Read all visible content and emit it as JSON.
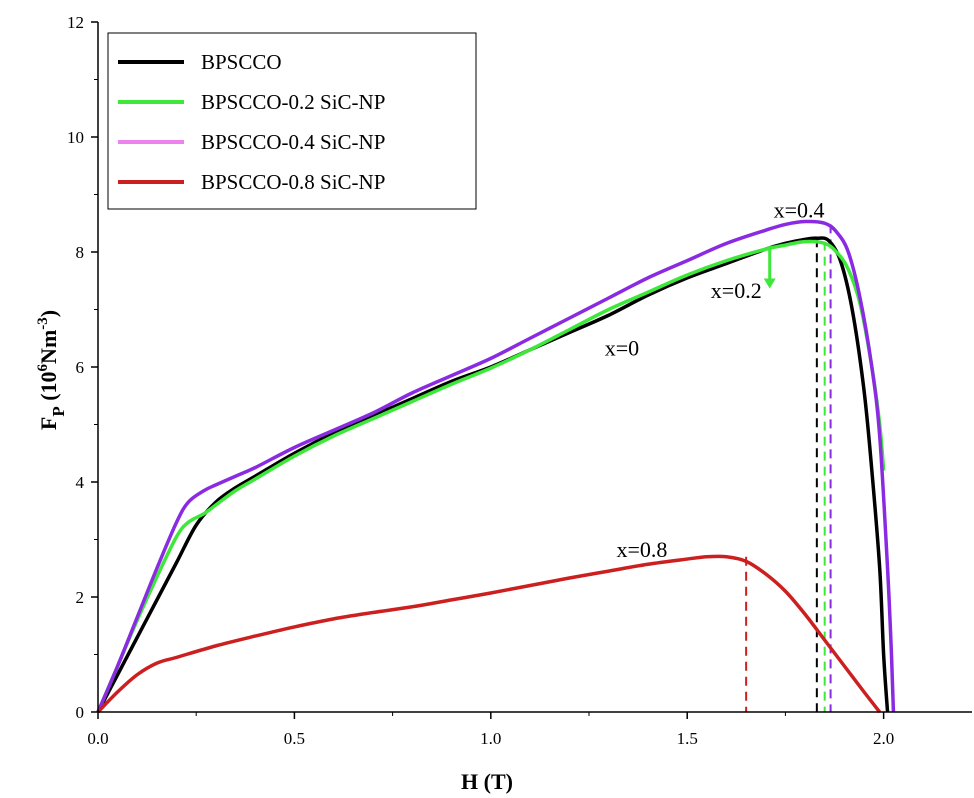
{
  "chart_data": {
    "type": "line",
    "xlabel": "H (T)",
    "ylabel_main": "F",
    "ylabel_sub": "P",
    "ylabel_units_pre": "(10",
    "ylabel_units_exp1": "6",
    "ylabel_units_mid": "Nm",
    "ylabel_units_exp2": "-3",
    "ylabel_units_post": ")",
    "xlim": [
      0,
      2.225
    ],
    "ylim": [
      0,
      12
    ],
    "xticks": [
      "0.0",
      "0.5",
      "1.0",
      "1.5",
      "2.0"
    ],
    "xtick_values": [
      0,
      0.5,
      1.0,
      1.5,
      2.0
    ],
    "yticks": [
      "0",
      "2",
      "4",
      "6",
      "8",
      "10",
      "12"
    ],
    "ytick_values": [
      0,
      2,
      4,
      6,
      8,
      10,
      12
    ],
    "legend_position": "top-left",
    "grid": false,
    "series": [
      {
        "name": "BPSCCO",
        "color": "#000000",
        "legend_color": "#000000",
        "x": [
          0,
          0.05,
          0.1,
          0.15,
          0.2,
          0.25,
          0.3,
          0.35,
          0.4,
          0.5,
          0.6,
          0.7,
          0.8,
          0.9,
          1.0,
          1.1,
          1.2,
          1.3,
          1.4,
          1.5,
          1.6,
          1.7,
          1.75,
          1.8,
          1.83,
          1.86,
          1.89,
          1.92,
          1.95,
          1.97,
          1.99,
          2.0,
          2.01
        ],
        "y": [
          0,
          0.65,
          1.3,
          1.95,
          2.6,
          3.25,
          3.65,
          3.9,
          4.1,
          4.5,
          4.85,
          5.15,
          5.45,
          5.75,
          6.0,
          6.3,
          6.6,
          6.9,
          7.25,
          7.55,
          7.8,
          8.05,
          8.15,
          8.22,
          8.24,
          8.2,
          7.85,
          7.0,
          5.6,
          4.2,
          2.5,
          1.0,
          0
        ]
      },
      {
        "name": "BPSCCO-0.2 SiC-NP",
        "color": "#3ee83a",
        "legend_color": "#3ee83a",
        "x": [
          0,
          0.05,
          0.1,
          0.15,
          0.2,
          0.23,
          0.27,
          0.3,
          0.35,
          0.4,
          0.5,
          0.6,
          0.7,
          0.8,
          0.9,
          1.0,
          1.1,
          1.2,
          1.3,
          1.4,
          1.5,
          1.6,
          1.7,
          1.75,
          1.8,
          1.85,
          1.88,
          1.91,
          1.94,
          1.97,
          1.99,
          2.0
        ],
        "y": [
          0,
          0.8,
          1.6,
          2.35,
          3.05,
          3.3,
          3.45,
          3.6,
          3.85,
          4.05,
          4.45,
          4.8,
          5.1,
          5.4,
          5.7,
          5.98,
          6.3,
          6.65,
          7.0,
          7.3,
          7.6,
          7.85,
          8.05,
          8.12,
          8.18,
          8.15,
          8.0,
          7.7,
          7.1,
          6.0,
          5.0,
          4.2
        ]
      },
      {
        "name": "BPSCCO-0.4 SiC-NP",
        "color": "#8a2be2",
        "legend_color": "#ee82ee",
        "x": [
          0,
          0.05,
          0.1,
          0.15,
          0.2,
          0.23,
          0.27,
          0.3,
          0.35,
          0.4,
          0.5,
          0.6,
          0.7,
          0.8,
          0.9,
          1.0,
          1.1,
          1.2,
          1.3,
          1.4,
          1.5,
          1.6,
          1.7,
          1.75,
          1.8,
          1.85,
          1.88,
          1.91,
          1.94,
          1.97,
          1.99,
          2.01,
          2.02,
          2.025
        ],
        "y": [
          0,
          0.8,
          1.65,
          2.5,
          3.3,
          3.65,
          3.85,
          3.95,
          4.1,
          4.25,
          4.6,
          4.9,
          5.2,
          5.55,
          5.85,
          6.15,
          6.5,
          6.85,
          7.2,
          7.55,
          7.85,
          8.15,
          8.38,
          8.48,
          8.53,
          8.5,
          8.35,
          8.0,
          7.2,
          6.0,
          4.8,
          2.5,
          1.0,
          0
        ]
      },
      {
        "name": "BPSCCO-0.8 SiC-NP",
        "color": "#cc2020",
        "legend_color": "#cc2020",
        "x": [
          0,
          0.05,
          0.1,
          0.15,
          0.2,
          0.3,
          0.4,
          0.5,
          0.6,
          0.7,
          0.8,
          0.9,
          1.0,
          1.1,
          1.2,
          1.3,
          1.4,
          1.5,
          1.55,
          1.6,
          1.65,
          1.7,
          1.75,
          1.8,
          1.85,
          1.9,
          1.95,
          1.99
        ],
        "y": [
          0,
          0.35,
          0.65,
          0.85,
          0.95,
          1.15,
          1.32,
          1.48,
          1.62,
          1.73,
          1.83,
          1.95,
          2.07,
          2.2,
          2.33,
          2.45,
          2.57,
          2.66,
          2.7,
          2.7,
          2.62,
          2.4,
          2.1,
          1.7,
          1.25,
          0.8,
          0.35,
          0
        ]
      }
    ],
    "markers": [
      {
        "x": 1.65,
        "y": 2.7,
        "color": "#cc2020"
      },
      {
        "x": 1.83,
        "y": 8.24,
        "color": "#000000"
      },
      {
        "x": 1.85,
        "y": 8.18,
        "color": "#3ee83a"
      },
      {
        "x": 1.865,
        "y": 8.48,
        "color": "#8a2be2"
      }
    ],
    "annotations": [
      {
        "text": "x=0.4",
        "x": 1.72,
        "y": 8.6
      },
      {
        "text": "x=0.2",
        "x": 1.56,
        "y": 7.2
      },
      {
        "text": "x=0",
        "x": 1.29,
        "y": 6.2
      },
      {
        "text": "x=0.8",
        "x": 1.32,
        "y": 2.7
      }
    ],
    "arrow": {
      "x": 1.71,
      "y_from": 8.1,
      "y_to": 7.4,
      "color": "#3ee83a"
    }
  }
}
